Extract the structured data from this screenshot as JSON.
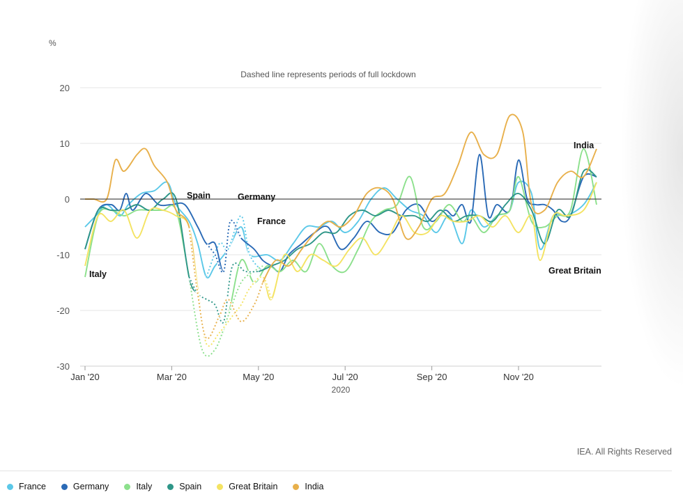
{
  "chart_data": {
    "type": "line",
    "y_unit": "%",
    "subtitle": "Dashed line represents periods of full lockdown",
    "xlabel": "2020",
    "ylim": [
      -30,
      20
    ],
    "yticks": [
      20,
      10,
      0,
      -10,
      -20,
      -30
    ],
    "x_ticks": [
      {
        "label": "Jan '20",
        "x": 0
      },
      {
        "label": "Mar '20",
        "x": 2
      },
      {
        "label": "May '20",
        "x": 4
      },
      {
        "label": "Jul '20",
        "x": 6
      },
      {
        "label": "Sep '20",
        "x": 8
      },
      {
        "label": "Nov '20",
        "x": 10
      }
    ],
    "xlim": [
      0,
      11.9
    ],
    "series": [
      {
        "name": "France",
        "color": "#5bc8e8",
        "points": [
          [
            0,
            -5
          ],
          [
            0.25,
            -3
          ],
          [
            0.5,
            -1
          ],
          [
            0.8,
            -3
          ],
          [
            1,
            -1
          ],
          [
            1.3,
            1
          ],
          [
            1.6,
            1.5
          ],
          [
            1.9,
            3
          ],
          [
            2.1,
            -1
          ],
          [
            2.4,
            -4
          ],
          [
            2.6,
            -8
          ],
          [
            2.8,
            -14
          ],
          [
            3,
            -12
          ],
          [
            3.3,
            -9
          ],
          [
            3.6,
            -5
          ],
          [
            3.8,
            -10
          ],
          [
            4.2,
            -10
          ],
          [
            4.5,
            -11
          ],
          [
            4.8,
            -8
          ],
          [
            5.1,
            -5
          ],
          [
            5.4,
            -5
          ],
          [
            5.7,
            -4
          ],
          [
            6,
            -6
          ],
          [
            6.3,
            -4
          ],
          [
            6.6,
            0
          ],
          [
            6.9,
            2
          ],
          [
            7.2,
            0
          ],
          [
            7.5,
            -2
          ],
          [
            7.8,
            -3
          ],
          [
            8.1,
            -6
          ],
          [
            8.4,
            -3
          ],
          [
            8.7,
            -8
          ],
          [
            8.9,
            -2
          ],
          [
            9.2,
            -5
          ],
          [
            9.5,
            -3
          ],
          [
            9.8,
            -2
          ],
          [
            10,
            3
          ],
          [
            10.3,
            1
          ],
          [
            10.5,
            -9
          ],
          [
            10.8,
            -3
          ],
          [
            11.1,
            -3
          ],
          [
            11.5,
            -1
          ],
          [
            11.8,
            3
          ]
        ],
        "dashed": [
          [
            2.8,
            -14
          ],
          [
            3.1,
            -8
          ],
          [
            3.3,
            -9
          ],
          [
            3.6,
            -3
          ],
          [
            3.8,
            -10
          ],
          [
            4.1,
            -13
          ]
        ]
      },
      {
        "name": "Germany",
        "color": "#2a6ab6",
        "points": [
          [
            0,
            -9
          ],
          [
            0.3,
            -2
          ],
          [
            0.6,
            -1
          ],
          [
            0.8,
            -2
          ],
          [
            0.95,
            1
          ],
          [
            1.1,
            -2
          ],
          [
            1.4,
            1
          ],
          [
            1.7,
            -1
          ],
          [
            2,
            -1
          ],
          [
            2.3,
            -1
          ],
          [
            2.6,
            -5
          ],
          [
            2.8,
            -8
          ],
          [
            3,
            -8
          ],
          [
            3.2,
            -13
          ],
          [
            3.35,
            -4
          ],
          [
            3.6,
            -7
          ],
          [
            3.9,
            -9
          ],
          [
            4.1,
            -11
          ],
          [
            4.3,
            -12
          ],
          [
            4.5,
            -13
          ],
          [
            4.7,
            -10
          ],
          [
            5,
            -8
          ],
          [
            5.3,
            -6
          ],
          [
            5.6,
            -5
          ],
          [
            5.9,
            -9
          ],
          [
            6.2,
            -7
          ],
          [
            6.5,
            -4
          ],
          [
            6.8,
            -6
          ],
          [
            7.1,
            -6
          ],
          [
            7.4,
            -2
          ],
          [
            7.7,
            -1
          ],
          [
            8,
            -4
          ],
          [
            8.3,
            -2
          ],
          [
            8.5,
            -3
          ],
          [
            8.7,
            -1
          ],
          [
            8.9,
            -4
          ],
          [
            9.1,
            8
          ],
          [
            9.3,
            -3
          ],
          [
            9.5,
            -1
          ],
          [
            9.8,
            -2
          ],
          [
            10,
            7
          ],
          [
            10.2,
            0
          ],
          [
            10.4,
            -1
          ],
          [
            10.6,
            -1
          ],
          [
            10.8,
            -2
          ],
          [
            11,
            -4
          ],
          [
            11.2,
            -3
          ],
          [
            11.5,
            4
          ],
          [
            11.8,
            4
          ]
        ],
        "dashed": [
          [
            2.8,
            -8
          ],
          [
            3,
            -10
          ],
          [
            3.2,
            -13
          ],
          [
            3.35,
            -4
          ],
          [
            3.6,
            -7
          ]
        ]
      },
      {
        "name": "Italy",
        "color": "#8ce08c",
        "points": [
          [
            0,
            -14
          ],
          [
            0.3,
            -3
          ],
          [
            0.6,
            -2
          ],
          [
            0.9,
            -3
          ],
          [
            1.2,
            -2
          ],
          [
            1.5,
            -2
          ],
          [
            1.8,
            -2
          ],
          [
            2.1,
            -2
          ],
          [
            2.4,
            -14
          ],
          [
            2.7,
            -27
          ],
          [
            3,
            -27
          ],
          [
            3.3,
            -21
          ],
          [
            3.6,
            -11
          ],
          [
            3.9,
            -15
          ],
          [
            4.2,
            -12
          ],
          [
            4.5,
            -13
          ],
          [
            4.8,
            -11
          ],
          [
            5.1,
            -13
          ],
          [
            5.4,
            -8
          ],
          [
            5.7,
            -12
          ],
          [
            6,
            -13
          ],
          [
            6.3,
            -9
          ],
          [
            6.6,
            -4
          ],
          [
            6.9,
            -2
          ],
          [
            7.2,
            -1
          ],
          [
            7.5,
            4
          ],
          [
            7.8,
            -5
          ],
          [
            8.1,
            -4
          ],
          [
            8.4,
            -1
          ],
          [
            8.7,
            -4
          ],
          [
            8.9,
            -3
          ],
          [
            9.2,
            -6
          ],
          [
            9.5,
            -3
          ],
          [
            9.8,
            -2
          ],
          [
            10,
            4
          ],
          [
            10.3,
            -4
          ],
          [
            10.6,
            -5
          ],
          [
            10.9,
            -3
          ],
          [
            11.2,
            -2
          ],
          [
            11.5,
            9
          ],
          [
            11.8,
            -1
          ]
        ],
        "dashed": [
          [
            2.4,
            -14
          ],
          [
            2.7,
            -27
          ],
          [
            3,
            -27
          ],
          [
            3.3,
            -21
          ],
          [
            3.6,
            -15
          ],
          [
            3.9,
            -13
          ],
          [
            4.1,
            -12
          ]
        ]
      },
      {
        "name": "Spain",
        "color": "#2e9688",
        "points": [
          [
            0,
            -9
          ],
          [
            0.3,
            -2
          ],
          [
            0.6,
            -2
          ],
          [
            0.9,
            -2
          ],
          [
            1.2,
            -1
          ],
          [
            1.5,
            -2
          ],
          [
            1.8,
            0
          ],
          [
            2.1,
            0
          ],
          [
            2.4,
            -14
          ],
          [
            2.6,
            -17
          ],
          [
            2.8,
            -18
          ],
          [
            3,
            -19
          ],
          [
            3.2,
            -22
          ],
          [
            3.4,
            -12
          ],
          [
            3.7,
            -13
          ],
          [
            4,
            -13
          ],
          [
            4.3,
            -12
          ],
          [
            4.6,
            -11
          ],
          [
            4.9,
            -9
          ],
          [
            5.2,
            -8
          ],
          [
            5.5,
            -6
          ],
          [
            5.8,
            -6
          ],
          [
            6.1,
            -3
          ],
          [
            6.4,
            -2
          ],
          [
            6.7,
            -3
          ],
          [
            7,
            -2
          ],
          [
            7.3,
            -3
          ],
          [
            7.6,
            -3
          ],
          [
            7.9,
            -4
          ],
          [
            8.2,
            -2
          ],
          [
            8.5,
            -4
          ],
          [
            8.8,
            -3
          ],
          [
            9.1,
            -3
          ],
          [
            9.4,
            -4
          ],
          [
            9.7,
            -1
          ],
          [
            10,
            1
          ],
          [
            10.3,
            -2
          ],
          [
            10.6,
            -8
          ],
          [
            10.9,
            -2
          ],
          [
            11.2,
            -3
          ],
          [
            11.5,
            5
          ],
          [
            11.8,
            4
          ]
        ],
        "dashed": [
          [
            2.4,
            -14
          ],
          [
            2.6,
            -17
          ],
          [
            2.8,
            -18
          ],
          [
            3,
            -19
          ],
          [
            3.2,
            -22
          ],
          [
            3.4,
            -12
          ],
          [
            3.7,
            -13
          ],
          [
            4,
            -13
          ]
        ]
      },
      {
        "name": "Great Britain",
        "color": "#f4e362",
        "points": [
          [
            0,
            -12
          ],
          [
            0.3,
            -3
          ],
          [
            0.6,
            -4
          ],
          [
            0.9,
            -2
          ],
          [
            1.2,
            -7
          ],
          [
            1.5,
            -2
          ],
          [
            1.8,
            -2
          ],
          [
            2.1,
            -3
          ],
          [
            2.4,
            -5
          ],
          [
            2.6,
            -16
          ],
          [
            2.8,
            -26
          ],
          [
            3.1,
            -24
          ],
          [
            3.4,
            -21
          ],
          [
            3.6,
            -19
          ],
          [
            3.8,
            -16
          ],
          [
            4.1,
            -14
          ],
          [
            4.3,
            -18
          ],
          [
            4.6,
            -10
          ],
          [
            4.9,
            -13
          ],
          [
            5.2,
            -10
          ],
          [
            5.5,
            -11
          ],
          [
            5.8,
            -12
          ],
          [
            6.1,
            -9
          ],
          [
            6.4,
            -7
          ],
          [
            6.7,
            -10
          ],
          [
            7,
            -7
          ],
          [
            7.3,
            -3
          ],
          [
            7.6,
            -6
          ],
          [
            7.9,
            -6
          ],
          [
            8.2,
            -3
          ],
          [
            8.5,
            -4
          ],
          [
            8.8,
            -4
          ],
          [
            9.1,
            -3
          ],
          [
            9.4,
            -5
          ],
          [
            9.7,
            -3
          ],
          [
            10,
            -6
          ],
          [
            10.3,
            -3
          ],
          [
            10.5,
            -11
          ],
          [
            10.8,
            -3
          ],
          [
            11.1,
            -3
          ],
          [
            11.5,
            -2
          ],
          [
            11.8,
            3
          ]
        ],
        "dashed": [
          [
            2.6,
            -16
          ],
          [
            2.8,
            -26
          ],
          [
            3.1,
            -24
          ],
          [
            3.4,
            -21
          ],
          [
            3.6,
            -19
          ],
          [
            3.8,
            -16
          ],
          [
            4.1,
            -14
          ],
          [
            4.3,
            -18
          ]
        ]
      },
      {
        "name": "India",
        "color": "#e8b04b",
        "points": [
          [
            0,
            0
          ],
          [
            0.2,
            0
          ],
          [
            0.5,
            0
          ],
          [
            0.7,
            7
          ],
          [
            0.9,
            5
          ],
          [
            1.2,
            8
          ],
          [
            1.4,
            9
          ],
          [
            1.6,
            6
          ],
          [
            1.9,
            3
          ],
          [
            2.1,
            -2
          ],
          [
            2.4,
            -5
          ],
          [
            2.6,
            -17
          ],
          [
            2.8,
            -25
          ],
          [
            3.1,
            -21
          ],
          [
            3.3,
            -18
          ],
          [
            3.6,
            -22
          ],
          [
            3.9,
            -19
          ],
          [
            4.1,
            -15
          ],
          [
            4.4,
            -11
          ],
          [
            4.7,
            -12
          ],
          [
            5,
            -9
          ],
          [
            5.3,
            -6
          ],
          [
            5.6,
            -4
          ],
          [
            5.9,
            -5
          ],
          [
            6.2,
            -3
          ],
          [
            6.5,
            1
          ],
          [
            6.8,
            2
          ],
          [
            7.1,
            0
          ],
          [
            7.4,
            -7
          ],
          [
            7.7,
            -5
          ],
          [
            8,
            0
          ],
          [
            8.3,
            1
          ],
          [
            8.6,
            6
          ],
          [
            8.9,
            12
          ],
          [
            9.2,
            8
          ],
          [
            9.5,
            8
          ],
          [
            9.8,
            15
          ],
          [
            10.1,
            12
          ],
          [
            10.3,
            -1
          ],
          [
            10.6,
            -2
          ],
          [
            10.9,
            3
          ],
          [
            11.2,
            5
          ],
          [
            11.5,
            4
          ],
          [
            11.8,
            9
          ]
        ],
        "dashed": [
          [
            2.4,
            -5
          ],
          [
            2.6,
            -17
          ],
          [
            2.8,
            -25
          ],
          [
            3.1,
            -21
          ],
          [
            3.3,
            -18
          ],
          [
            3.6,
            -22
          ],
          [
            3.9,
            -19
          ],
          [
            4.1,
            -15
          ]
        ]
      }
    ],
    "annotations": [
      {
        "text": "Italy",
        "series": "Italy"
      },
      {
        "text": "Spain",
        "series": "Spain"
      },
      {
        "text": "Germany",
        "series": "Germany"
      },
      {
        "text": "France",
        "series": "France"
      },
      {
        "text": "India",
        "series": "India"
      },
      {
        "text": "Great Britain",
        "series": "Great Britain"
      }
    ],
    "grid": true,
    "zero_line": true,
    "legend_position": "bottom"
  },
  "credit": "IEA. All Rights Reserved"
}
